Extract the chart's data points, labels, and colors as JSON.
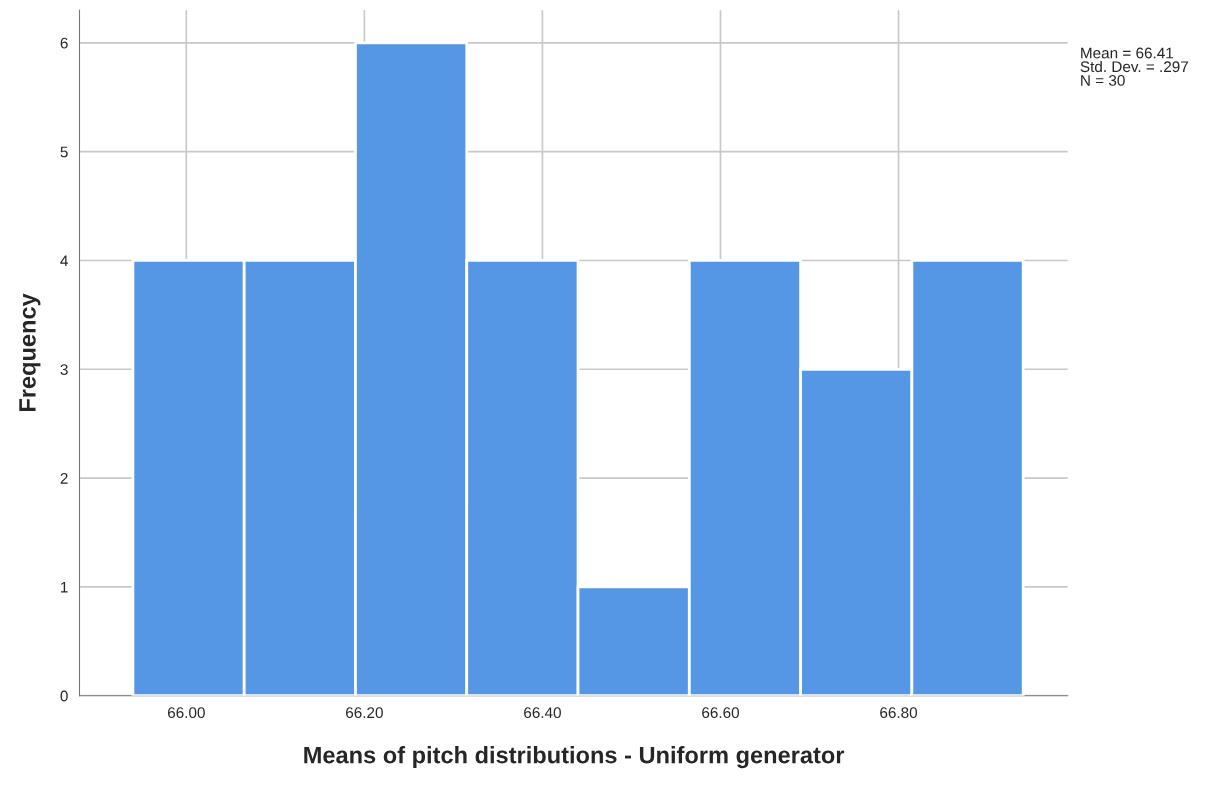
{
  "chart_data": {
    "type": "histogram",
    "xlabel": "Means of pitch distributions - Uniform generator",
    "ylabel": "Frequency",
    "bins": [
      65.94,
      66.065,
      66.19,
      66.315,
      66.44,
      66.565,
      66.69,
      66.815,
      66.94
    ],
    "values": [
      4,
      4,
      6,
      4,
      1,
      4,
      3,
      4
    ],
    "color": "#5596e5",
    "xlim": [
      65.88,
      66.99
    ],
    "xticks": [
      {
        "value": 66.0,
        "label": "66.00"
      },
      {
        "value": 66.2,
        "label": "66.20"
      },
      {
        "value": 66.4,
        "label": "66.40"
      },
      {
        "value": 66.6,
        "label": "66.60"
      },
      {
        "value": 66.8,
        "label": "66.80"
      }
    ],
    "ylim": [
      0,
      6.3
    ],
    "yticks": [
      0,
      1,
      2,
      3,
      4,
      5,
      6
    ],
    "grid": true,
    "annotations": [
      "Mean = 66.41\nStd. Dev. = .297\nN = 30"
    ]
  }
}
